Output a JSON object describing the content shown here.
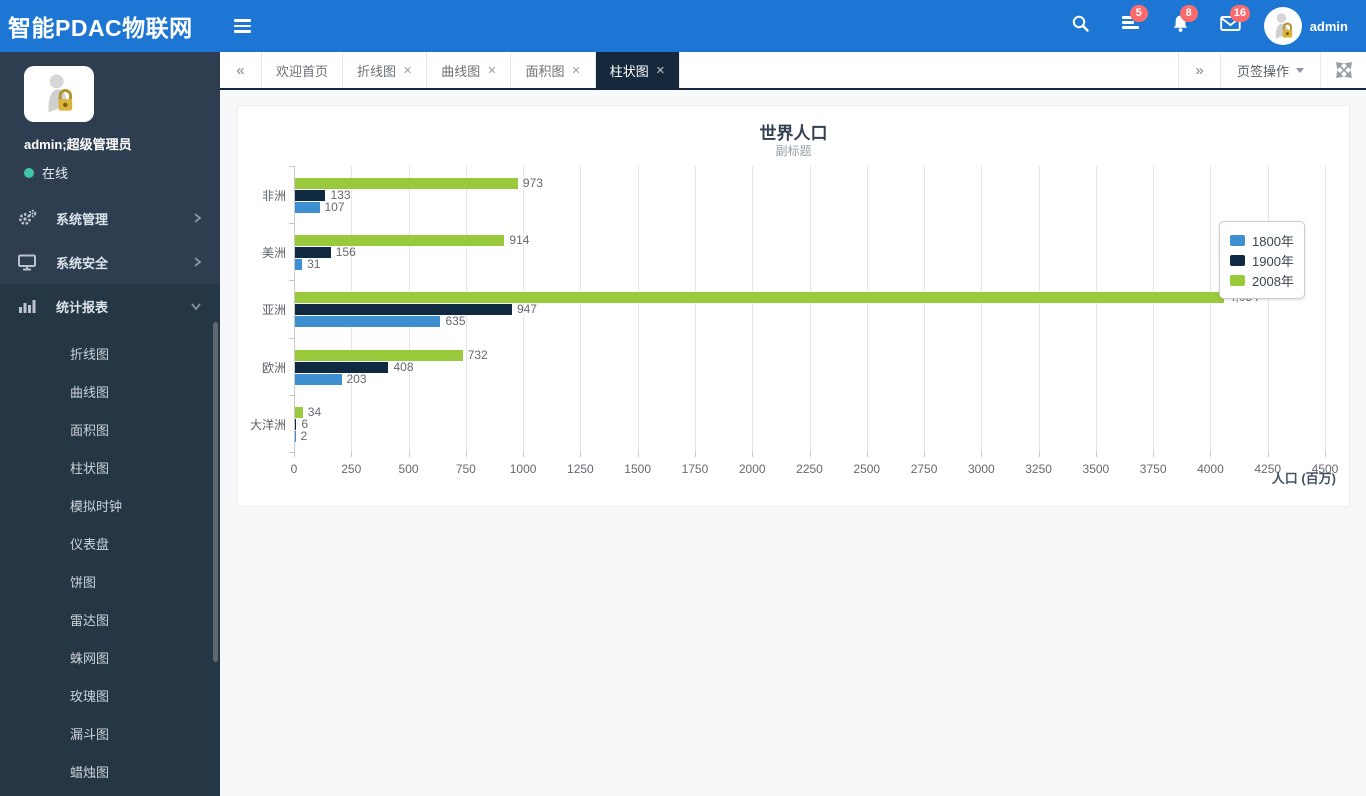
{
  "header": {
    "brand": "智能PDAC物联网",
    "user": "admin",
    "badge_tasks": "5",
    "badge_alerts": "8",
    "badge_mail": "16"
  },
  "sidebar": {
    "user_name": "admin;超级管理员",
    "status": "在线",
    "menu": [
      {
        "label": "系统管理"
      },
      {
        "label": "系统安全"
      },
      {
        "label": "统计报表"
      }
    ],
    "submenu": [
      {
        "label": "折线图"
      },
      {
        "label": "曲线图"
      },
      {
        "label": "面积图"
      },
      {
        "label": "柱状图"
      },
      {
        "label": "模拟时钟"
      },
      {
        "label": "仪表盘"
      },
      {
        "label": "饼图"
      },
      {
        "label": "雷达图"
      },
      {
        "label": "蛛网图"
      },
      {
        "label": "玫瑰图"
      },
      {
        "label": "漏斗图"
      },
      {
        "label": "蜡烛图"
      }
    ]
  },
  "tabbar": {
    "prev_label": "«",
    "next_label": "»",
    "ops_label": "页签操作",
    "close_glyph": "✕",
    "tabs": [
      {
        "label": "欢迎首页"
      },
      {
        "label": "折线图"
      },
      {
        "label": "曲线图"
      },
      {
        "label": "面积图"
      },
      {
        "label": "柱状图"
      }
    ]
  },
  "theme": {
    "header_blue": "#1d76d3",
    "sidebar_bg": "#2e3e50",
    "badge_red": "#fb6b6d",
    "status_online": "#3fc6a7",
    "active_tab_bg": "#16283c"
  },
  "chart_data": {
    "type": "bar",
    "orientation": "horizontal",
    "title": "世界人口",
    "subtitle": "副标题",
    "xlabel": "人口 (百万)",
    "categories": [
      "非洲",
      "美洲",
      "亚洲",
      "欧洲",
      "大洋洲"
    ],
    "series": [
      {
        "name": "1800年",
        "color": "#3d8fd0",
        "values": [
          107,
          31,
          635,
          203,
          2
        ]
      },
      {
        "name": "1900年",
        "color": "#0e2940",
        "values": [
          133,
          156,
          947,
          408,
          6
        ]
      },
      {
        "name": "2008年",
        "color": "#98ca3c",
        "values": [
          973,
          914,
          4054,
          732,
          34
        ]
      }
    ],
    "xlim": [
      0,
      4500
    ],
    "xtick_step": 250,
    "grid": true,
    "legend_position": "right"
  }
}
